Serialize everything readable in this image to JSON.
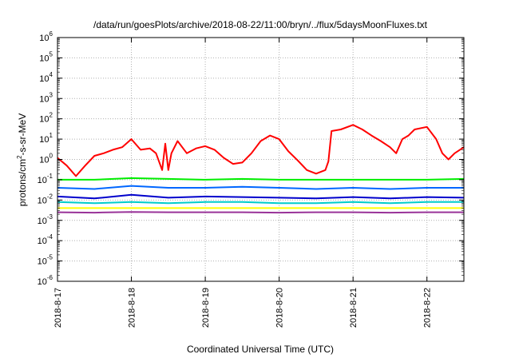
{
  "chart_data": {
    "type": "line",
    "title": "/data/run/goesPlots/archive/2018-08-22/11:00/bryn/../flux/5daysMoonFluxes.txt",
    "xlabel": "Coordinated Universal Time (UTC)",
    "ylabel": "protons/cm²-s-sr-MeV",
    "ylabel_parts": {
      "pre": "protons/cm",
      "sup": "2",
      "post": "-s-sr-MeV"
    },
    "y_scale": "log",
    "ylim": [
      1e-06,
      1000000.0
    ],
    "xlim": [
      "2018-08-17 00:00",
      "2018-08-22 12:00"
    ],
    "y_ticks": [
      {
        "base": "10",
        "exp": "-6"
      },
      {
        "base": "10",
        "exp": "-5"
      },
      {
        "base": "10",
        "exp": "-4"
      },
      {
        "base": "10",
        "exp": "-3"
      },
      {
        "base": "10",
        "exp": "-2"
      },
      {
        "base": "10",
        "exp": "-1"
      },
      {
        "base": "10",
        "exp": "0"
      },
      {
        "base": "10",
        "exp": "1"
      },
      {
        "base": "10",
        "exp": "2"
      },
      {
        "base": "10",
        "exp": "3"
      },
      {
        "base": "10",
        "exp": "4"
      },
      {
        "base": "10",
        "exp": "5"
      },
      {
        "base": "10",
        "exp": "6"
      }
    ],
    "x_ticks": [
      "2018-8-17",
      "2018-8-18",
      "2018-8-19",
      "2018-8-20",
      "2018-8-21",
      "2018-8-22"
    ],
    "grid": true,
    "legend": "none",
    "series": [
      {
        "color": "#ff0000",
        "points": [
          [
            "2018-08-17 00:00",
            1.2
          ],
          [
            "2018-08-17 03:00",
            0.5
          ],
          [
            "2018-08-17 06:00",
            0.15
          ],
          [
            "2018-08-17 09:00",
            0.5
          ],
          [
            "2018-08-17 12:00",
            1.5
          ],
          [
            "2018-08-17 15:00",
            2.0
          ],
          [
            "2018-08-17 18:00",
            3.0
          ],
          [
            "2018-08-17 21:00",
            4.0
          ],
          [
            "2018-08-18 00:00",
            10
          ],
          [
            "2018-08-18 03:00",
            3.0
          ],
          [
            "2018-08-18 06:00",
            3.5
          ],
          [
            "2018-08-18 08:00",
            2.0
          ],
          [
            "2018-08-18 10:00",
            0.3
          ],
          [
            "2018-08-18 11:00",
            6.0
          ],
          [
            "2018-08-18 12:00",
            0.3
          ],
          [
            "2018-08-18 13:00",
            2.0
          ],
          [
            "2018-08-18 15:00",
            8.0
          ],
          [
            "2018-08-18 18:00",
            2.0
          ],
          [
            "2018-08-18 21:00",
            3.5
          ],
          [
            "2018-08-19 00:00",
            4.5
          ],
          [
            "2018-08-19 03:00",
            3.0
          ],
          [
            "2018-08-19 06:00",
            1.2
          ],
          [
            "2018-08-19 09:00",
            0.6
          ],
          [
            "2018-08-19 12:00",
            0.7
          ],
          [
            "2018-08-19 15:00",
            2.0
          ],
          [
            "2018-08-19 18:00",
            8.0
          ],
          [
            "2018-08-19 21:00",
            15
          ],
          [
            "2018-08-20 00:00",
            10
          ],
          [
            "2018-08-20 03:00",
            2.5
          ],
          [
            "2018-08-20 06:00",
            0.9
          ],
          [
            "2018-08-20 09:00",
            0.3
          ],
          [
            "2018-08-20 12:00",
            0.2
          ],
          [
            "2018-08-20 15:00",
            0.3
          ],
          [
            "2018-08-20 16:00",
            0.8
          ],
          [
            "2018-08-20 17:00",
            25
          ],
          [
            "2018-08-20 20:00",
            30
          ],
          [
            "2018-08-21 00:00",
            50
          ],
          [
            "2018-08-21 03:00",
            30
          ],
          [
            "2018-08-21 06:00",
            15
          ],
          [
            "2018-08-21 09:00",
            8
          ],
          [
            "2018-08-21 12:00",
            4
          ],
          [
            "2018-08-21 14:00",
            2
          ],
          [
            "2018-08-21 16:00",
            10
          ],
          [
            "2018-08-21 18:00",
            15
          ],
          [
            "2018-08-21 20:00",
            30
          ],
          [
            "2018-08-22 00:00",
            40
          ],
          [
            "2018-08-22 03:00",
            10
          ],
          [
            "2018-08-22 05:00",
            2
          ],
          [
            "2018-08-22 07:00",
            1
          ],
          [
            "2018-08-22 09:00",
            2
          ],
          [
            "2018-08-22 12:00",
            4
          ]
        ]
      },
      {
        "color": "#00ee00",
        "points": [
          [
            "2018-08-17 00:00",
            0.1
          ],
          [
            "2018-08-17 12:00",
            0.1
          ],
          [
            "2018-08-18 00:00",
            0.12
          ],
          [
            "2018-08-18 12:00",
            0.11
          ],
          [
            "2018-08-19 00:00",
            0.1
          ],
          [
            "2018-08-19 12:00",
            0.11
          ],
          [
            "2018-08-20 00:00",
            0.1
          ],
          [
            "2018-08-20 12:00",
            0.1
          ],
          [
            "2018-08-21 00:00",
            0.1
          ],
          [
            "2018-08-21 12:00",
            0.1
          ],
          [
            "2018-08-22 00:00",
            0.1
          ],
          [
            "2018-08-22 12:00",
            0.11
          ]
        ]
      },
      {
        "color": "#0066ff",
        "points": [
          [
            "2018-08-17 00:00",
            0.04
          ],
          [
            "2018-08-17 12:00",
            0.035
          ],
          [
            "2018-08-18 00:00",
            0.05
          ],
          [
            "2018-08-18 12:00",
            0.04
          ],
          [
            "2018-08-19 00:00",
            0.04
          ],
          [
            "2018-08-19 12:00",
            0.045
          ],
          [
            "2018-08-20 00:00",
            0.04
          ],
          [
            "2018-08-20 12:00",
            0.035
          ],
          [
            "2018-08-21 00:00",
            0.04
          ],
          [
            "2018-08-21 12:00",
            0.035
          ],
          [
            "2018-08-22 00:00",
            0.04
          ],
          [
            "2018-08-22 12:00",
            0.04
          ]
        ]
      },
      {
        "color": "#00cccc",
        "points": [
          [
            "2018-08-17 00:00",
            0.008
          ],
          [
            "2018-08-17 12:00",
            0.007
          ],
          [
            "2018-08-18 00:00",
            0.008
          ],
          [
            "2018-08-18 12:00",
            0.007
          ],
          [
            "2018-08-19 00:00",
            0.008
          ],
          [
            "2018-08-19 12:00",
            0.008
          ],
          [
            "2018-08-20 00:00",
            0.007
          ],
          [
            "2018-08-20 12:00",
            0.007
          ],
          [
            "2018-08-21 00:00",
            0.008
          ],
          [
            "2018-08-21 12:00",
            0.007
          ],
          [
            "2018-08-22 00:00",
            0.008
          ],
          [
            "2018-08-22 12:00",
            0.008
          ]
        ]
      },
      {
        "color": "#0000cc",
        "points": [
          [
            "2018-08-17 00:00",
            0.015
          ],
          [
            "2018-08-17 12:00",
            0.012
          ],
          [
            "2018-08-18 00:00",
            0.018
          ],
          [
            "2018-08-18 12:00",
            0.013
          ],
          [
            "2018-08-19 00:00",
            0.015
          ],
          [
            "2018-08-19 12:00",
            0.014
          ],
          [
            "2018-08-20 00:00",
            0.013
          ],
          [
            "2018-08-20 12:00",
            0.012
          ],
          [
            "2018-08-21 00:00",
            0.014
          ],
          [
            "2018-08-21 12:00",
            0.012
          ],
          [
            "2018-08-22 00:00",
            0.014
          ],
          [
            "2018-08-22 12:00",
            0.013
          ]
        ]
      },
      {
        "color": "#ffff00",
        "points": [
          [
            "2018-08-17 00:00",
            0.004
          ],
          [
            "2018-08-18 00:00",
            0.004
          ],
          [
            "2018-08-19 00:00",
            0.004
          ],
          [
            "2018-08-20 00:00",
            0.004
          ],
          [
            "2018-08-21 00:00",
            0.004
          ],
          [
            "2018-08-21 12:00",
            0.004
          ],
          [
            "2018-08-22 00:00",
            0.004
          ],
          [
            "2018-08-22 12:00",
            0.004
          ]
        ]
      },
      {
        "color": "#993399",
        "points": [
          [
            "2018-08-17 00:00",
            0.0025
          ],
          [
            "2018-08-17 12:00",
            0.0024
          ],
          [
            "2018-08-18 00:00",
            0.0026
          ],
          [
            "2018-08-18 12:00",
            0.0025
          ],
          [
            "2018-08-19 00:00",
            0.0025
          ],
          [
            "2018-08-19 12:00",
            0.0025
          ],
          [
            "2018-08-20 00:00",
            0.0024
          ],
          [
            "2018-08-20 12:00",
            0.0025
          ],
          [
            "2018-08-21 00:00",
            0.0025
          ],
          [
            "2018-08-21 12:00",
            0.0024
          ],
          [
            "2018-08-22 00:00",
            0.0025
          ],
          [
            "2018-08-22 12:00",
            0.0025
          ]
        ]
      }
    ]
  }
}
